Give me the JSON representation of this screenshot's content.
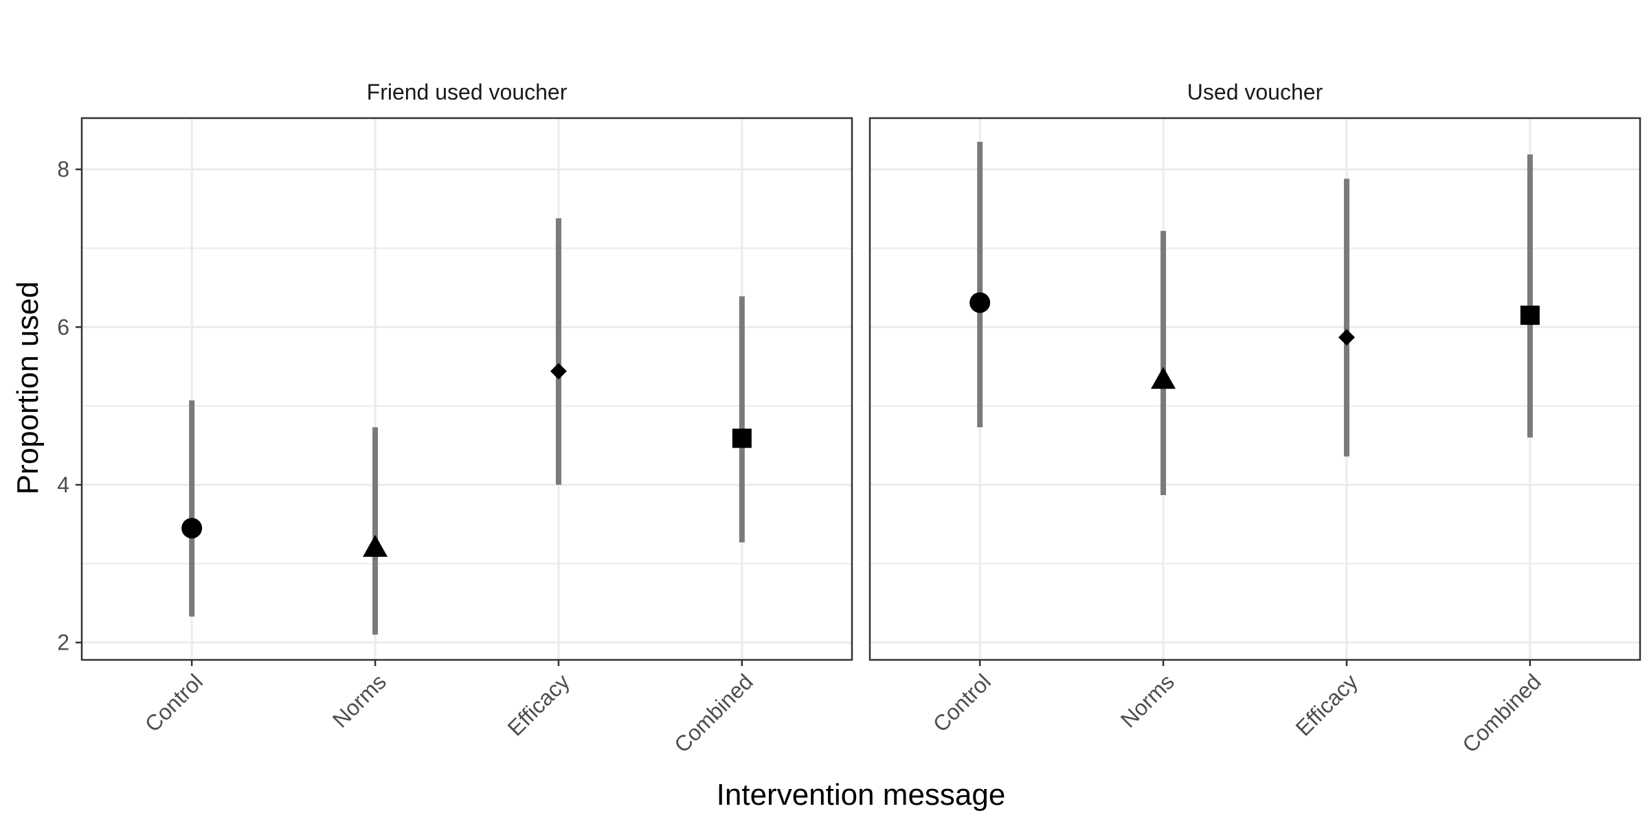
{
  "chart_data": {
    "type": "scatter",
    "xlabel": "Intervention message",
    "ylabel": "Proportion used",
    "categories": [
      "Control",
      "Norms",
      "Efficacy",
      "Combined"
    ],
    "ylim": [
      1.78,
      8.65
    ],
    "yticks": [
      2,
      4,
      6,
      8
    ],
    "grid": true,
    "legend": "none",
    "colors": {
      "point": "#000000",
      "errorbar": "#7a7a7a",
      "grid": "#ebebeb",
      "panel_border": "#333333"
    },
    "panels": [
      {
        "title": "Friend used voucher",
        "series": [
          {
            "category": "Control",
            "y": 3.45,
            "ymin": 2.33,
            "ymax": 5.07,
            "shape": "circle"
          },
          {
            "category": "Norms",
            "y": 3.2,
            "ymin": 2.1,
            "ymax": 4.73,
            "shape": "triangle"
          },
          {
            "category": "Efficacy",
            "y": 5.44,
            "ymin": 4.0,
            "ymax": 7.38,
            "shape": "diamond"
          },
          {
            "category": "Combined",
            "y": 4.59,
            "ymin": 3.27,
            "ymax": 6.39,
            "shape": "square"
          }
        ]
      },
      {
        "title": "Used voucher",
        "series": [
          {
            "category": "Control",
            "y": 6.31,
            "ymin": 4.73,
            "ymax": 8.35,
            "shape": "circle"
          },
          {
            "category": "Norms",
            "y": 5.33,
            "ymin": 3.87,
            "ymax": 7.22,
            "shape": "triangle"
          },
          {
            "category": "Efficacy",
            "y": 5.87,
            "ymin": 4.36,
            "ymax": 7.88,
            "shape": "diamond"
          },
          {
            "category": "Combined",
            "y": 6.15,
            "ymin": 4.6,
            "ymax": 8.19,
            "shape": "square"
          }
        ]
      }
    ]
  }
}
